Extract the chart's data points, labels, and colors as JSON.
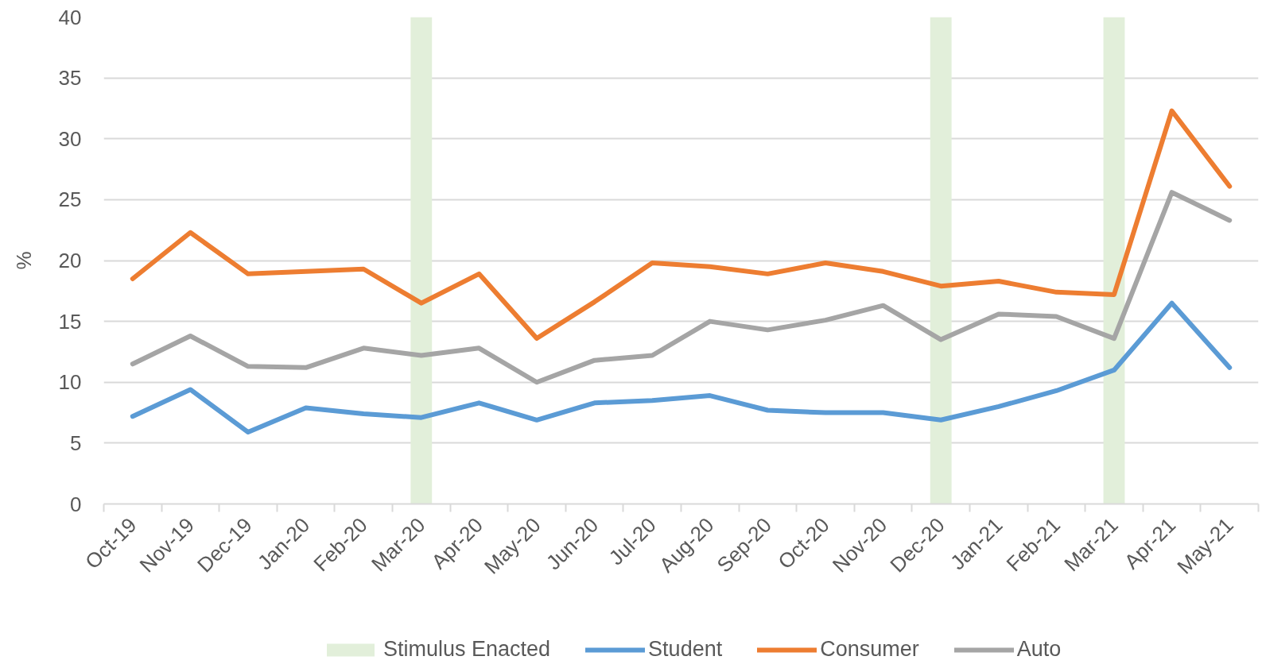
{
  "chart_data": {
    "type": "line",
    "ylabel": "%",
    "categories": [
      "Oct-19",
      "Nov-19",
      "Dec-19",
      "Jan-20",
      "Feb-20",
      "Mar-20",
      "Apr-20",
      "May-20",
      "Jun-20",
      "Jul-20",
      "Aug-20",
      "Sep-20",
      "Oct-20",
      "Nov-20",
      "Dec-20",
      "Jan-21",
      "Feb-21",
      "Mar-21",
      "Apr-21",
      "May-21"
    ],
    "series": [
      {
        "name": "Stimulus Enacted",
        "type": "bar",
        "color": "#e2efda",
        "values": [
          null,
          null,
          null,
          null,
          null,
          40,
          null,
          null,
          null,
          null,
          null,
          null,
          null,
          null,
          40,
          null,
          null,
          40,
          null,
          null
        ]
      },
      {
        "name": "Student",
        "color": "#5b9bd5",
        "values": [
          7.2,
          9.4,
          5.9,
          7.9,
          7.4,
          7.1,
          8.3,
          6.9,
          8.3,
          8.5,
          8.9,
          7.7,
          7.5,
          7.5,
          6.9,
          8.0,
          9.3,
          11.0,
          16.5,
          11.2
        ]
      },
      {
        "name": "Consumer",
        "color": "#ed7d31",
        "values": [
          18.5,
          22.3,
          18.9,
          19.1,
          19.3,
          16.5,
          18.9,
          13.6,
          16.6,
          19.8,
          19.5,
          18.9,
          19.8,
          19.1,
          17.9,
          18.3,
          17.4,
          17.2,
          32.3,
          26.1
        ]
      },
      {
        "name": "Auto",
        "color": "#a5a5a5",
        "values": [
          11.5,
          13.8,
          11.3,
          11.2,
          12.8,
          12.2,
          12.8,
          10.0,
          11.8,
          12.2,
          15.0,
          14.3,
          15.1,
          16.3,
          13.5,
          15.6,
          15.4,
          13.6,
          25.6,
          23.3
        ]
      }
    ],
    "ylim": [
      0,
      40
    ],
    "yticks": [
      0,
      5,
      10,
      15,
      20,
      25,
      30,
      35,
      40
    ],
    "grid": "y",
    "legend": "bottom"
  }
}
